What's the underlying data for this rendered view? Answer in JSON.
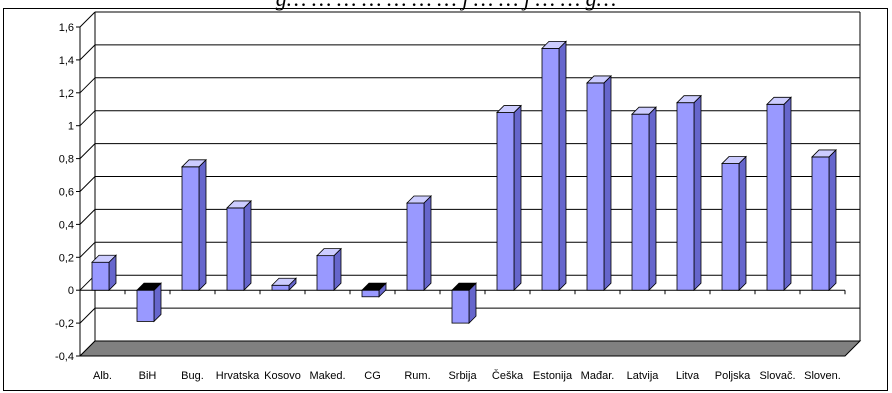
{
  "top_caption": "g… … … … … … … j … … j … … g…",
  "chart_data": {
    "type": "bar",
    "style": "3d-columns",
    "title": "",
    "xlabel": "",
    "ylabel": "",
    "ylim": [
      -0.4,
      1.6
    ],
    "yticks": [
      "-0,4",
      "-0,2",
      "0",
      "0,2",
      "0,4",
      "0,6",
      "0,8",
      "1",
      "1,2",
      "1,4",
      "1,6"
    ],
    "grid": true,
    "legend": "none",
    "categories": [
      "Alb.",
      "BiH",
      "Bug.",
      "Hrvatska",
      "Kosovo",
      "Maked.",
      "CG",
      "Rum.",
      "Srbija",
      "Češka",
      "Estonija",
      "Mađar.",
      "Latvija",
      "Litva",
      "Poljska",
      "Slovač.",
      "Sloven."
    ],
    "values": [
      0.17,
      -0.19,
      0.75,
      0.5,
      0.03,
      0.21,
      -0.04,
      0.53,
      -0.2,
      1.08,
      1.47,
      1.26,
      1.07,
      1.14,
      0.77,
      1.13,
      0.81
    ],
    "colors": {
      "bar_front": "#9999ff",
      "bar_side": "#6666cc",
      "bar_top": "#ccccff",
      "floor": "#808080",
      "grid": "#000000"
    }
  }
}
